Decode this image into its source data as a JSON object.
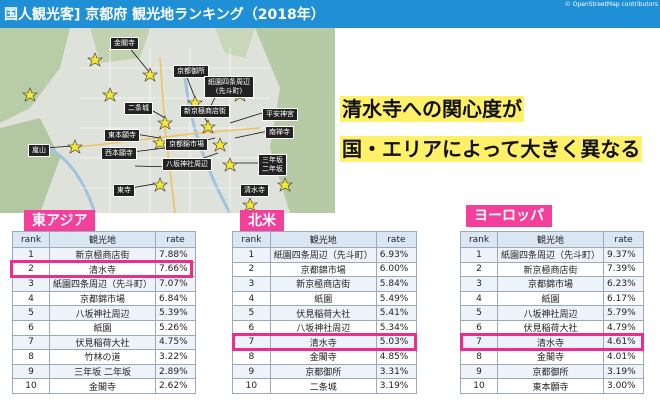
{
  "header": {
    "title": "国人観光客]  京都府  観光地ランキング（2018年）",
    "credit": "© OpenStreetMap contributors"
  },
  "map": {
    "labels": [
      "金閣寺",
      "京都御所",
      "紙園四条周辺\n(先斗町)",
      "二条城",
      "新京極商店街",
      "平安神宮",
      "東本願寺",
      "京都錦市場",
      "南禅寺",
      "西本願寺",
      "八坂神社周辺",
      "嵐山",
      "三年坂\n二年坂",
      "清水寺",
      "東寺"
    ]
  },
  "headline": {
    "line1": "清水寺への関心度が",
    "line2": "国・エリアによって大きく異なる"
  },
  "tables": [
    {
      "region": "東アジア",
      "headers": {
        "rank": "rank",
        "name": "観光地",
        "rate": "rate"
      },
      "rows": [
        {
          "rank": "1",
          "name": "新京極商店街",
          "rate": "7.88%"
        },
        {
          "rank": "2",
          "name": "清水寺",
          "rate": "7.66%"
        },
        {
          "rank": "3",
          "name": "紙園四条周辺（先斗町）",
          "rate": "7.07%"
        },
        {
          "rank": "4",
          "name": "京都錦市場",
          "rate": "6.84%"
        },
        {
          "rank": "5",
          "name": "八坂神社周辺",
          "rate": "5.39%"
        },
        {
          "rank": "6",
          "name": "紙園",
          "rate": "5.26%"
        },
        {
          "rank": "7",
          "name": "伏見稲荷大社",
          "rate": "4.75%"
        },
        {
          "rank": "8",
          "name": "竹林の道",
          "rate": "3.22%"
        },
        {
          "rank": "9",
          "name": "三年坂 二年坂",
          "rate": "2.89%"
        },
        {
          "rank": "10",
          "name": "金閣寺",
          "rate": "2.62%"
        }
      ]
    },
    {
      "region": "北米",
      "headers": {
        "rank": "rank",
        "name": "観光地",
        "rate": "rate"
      },
      "rows": [
        {
          "rank": "1",
          "name": "紙園四条周辺（先斗町）",
          "rate": "6.93%"
        },
        {
          "rank": "2",
          "name": "京都錦市場",
          "rate": "6.00%"
        },
        {
          "rank": "3",
          "name": "新京極商店街",
          "rate": "5.84%"
        },
        {
          "rank": "4",
          "name": "紙園",
          "rate": "5.49%"
        },
        {
          "rank": "5",
          "name": "伏見稲荷大社",
          "rate": "5.41%"
        },
        {
          "rank": "6",
          "name": "八坂神社周辺",
          "rate": "5.34%"
        },
        {
          "rank": "7",
          "name": "清水寺",
          "rate": "5.03%"
        },
        {
          "rank": "8",
          "name": "金閣寺",
          "rate": "4.85%"
        },
        {
          "rank": "9",
          "name": "京都御所",
          "rate": "3.31%"
        },
        {
          "rank": "10",
          "name": "二条城",
          "rate": "3.19%"
        }
      ]
    },
    {
      "region": "ヨーロッパ",
      "headers": {
        "rank": "rank",
        "name": "観光地",
        "rate": "rate"
      },
      "rows": [
        {
          "rank": "1",
          "name": "紙園四条周辺（先斗町）",
          "rate": "9.37%"
        },
        {
          "rank": "2",
          "name": "新京極商店街",
          "rate": "7.39%"
        },
        {
          "rank": "3",
          "name": "京都錦市場",
          "rate": "6.23%"
        },
        {
          "rank": "4",
          "name": "紙園",
          "rate": "6.17%"
        },
        {
          "rank": "5",
          "name": "八坂神社周辺",
          "rate": "5.79%"
        },
        {
          "rank": "6",
          "name": "伏見稲荷大社",
          "rate": "4.79%"
        },
        {
          "rank": "7",
          "name": "清水寺",
          "rate": "4.61%"
        },
        {
          "rank": "8",
          "name": "金閣寺",
          "rate": "4.01%"
        },
        {
          "rank": "9",
          "name": "京都御所",
          "rate": "3.19%"
        },
        {
          "rank": "10",
          "name": "東本願寺",
          "rate": "3.00%"
        }
      ]
    }
  ],
  "colors": {
    "title_bar": "#1f8fd6",
    "region_tag": "#f4409b",
    "highlight": "#ee2c8c",
    "headline_bg": "#fff06a",
    "table_header": "#dbe6f4"
  }
}
